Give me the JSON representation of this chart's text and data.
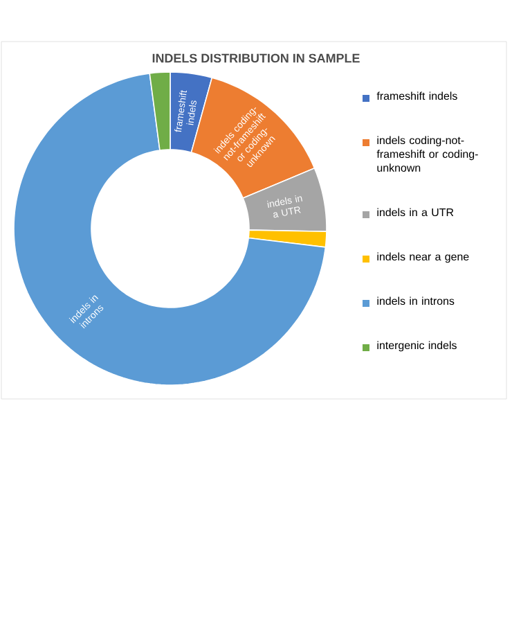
{
  "chart_data": {
    "type": "donut",
    "title": "INDELS DISTRIBUTION IN SAMPLE",
    "categories": [
      "frameshift indels",
      "indels coding-not-frameshift or coding-unknown",
      "indels in a UTR",
      "indels near a gene",
      "indels in introns",
      "intergenic indels"
    ],
    "values": [
      4.3,
      14.4,
      6.6,
      1.6,
      71.0,
      2.1
    ],
    "colors": [
      "#4472c4",
      "#ed7d31",
      "#a5a5a5",
      "#ffc000",
      "#5b9bd5",
      "#70ad47"
    ],
    "legend": "right",
    "annotations": [
      {
        "text": "frameshift indels",
        "x": "frameshift indels"
      },
      {
        "text": "indels coding-not-frameshift or coding-unknown",
        "x": "indels coding-not-frameshift or coding-unknown"
      },
      {
        "text": "indels in a UTR",
        "x": "indels in a UTR"
      },
      {
        "text": "indels in introns",
        "x": "indels in introns"
      }
    ]
  }
}
